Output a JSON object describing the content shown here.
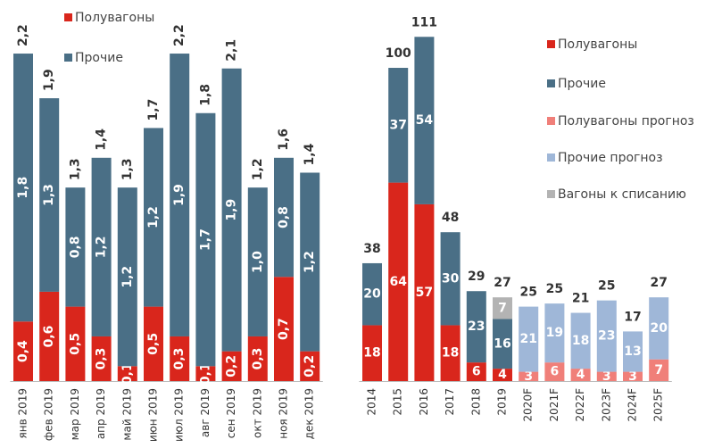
{
  "chart_data": [
    {
      "type": "bar",
      "stacked": true,
      "categories": [
        "янв 2019",
        "фев 2019",
        "мар 2019",
        "апр 2019",
        "май 2019",
        "июн 2019",
        "июл 2019",
        "авг 2019",
        "сен 2019",
        "окт 2019",
        "ноя 2019",
        "дек 2019"
      ],
      "series": [
        {
          "name": "Полувагоны",
          "color": "#d9261c",
          "values": [
            0.4,
            0.6,
            0.5,
            0.3,
            0.1,
            0.5,
            0.3,
            0.1,
            0.2,
            0.3,
            0.7,
            0.2
          ],
          "value_labels": [
            "0,4",
            "0,6",
            "0,5",
            "0,3",
            "0,1",
            "0,5",
            "0,3",
            "0,1",
            "0,2",
            "0,3",
            "0,7",
            "0,2"
          ]
        },
        {
          "name": "Прочие",
          "color": "#4a6f86",
          "values": [
            1.8,
            1.3,
            0.8,
            1.2,
            1.2,
            1.2,
            1.9,
            1.7,
            1.9,
            1.0,
            0.8,
            1.2
          ],
          "value_labels": [
            "1,8",
            "1,3",
            "0,8",
            "1,2",
            "1,2",
            "1,2",
            "1,9",
            "1,7",
            "1,9",
            "1,0",
            "0,8",
            "1,2"
          ]
        }
      ],
      "totals": {
        "values": [
          2.2,
          1.9,
          1.3,
          1.4,
          1.3,
          1.7,
          2.2,
          1.8,
          2.1,
          1.2,
          1.6,
          1.4
        ],
        "value_labels": [
          "2,2",
          "1,9",
          "1,3",
          "1,4",
          "1,3",
          "1,7",
          "2,2",
          "1,8",
          "2,1",
          "1,2",
          "1,6",
          "1,4"
        ]
      },
      "ylim": [
        0,
        2.5
      ]
    },
    {
      "type": "bar",
      "stacked": true,
      "categories": [
        "2014",
        "2015",
        "2016",
        "2017",
        "2018",
        "2019",
        "2020F",
        "2021F",
        "2022F",
        "2023F",
        "2024F",
        "2025F"
      ],
      "series": [
        {
          "name": "Полувагоны",
          "color": "#d9261c",
          "values": [
            18,
            64,
            57,
            18,
            6,
            4,
            null,
            null,
            null,
            null,
            null,
            null
          ]
        },
        {
          "name": "Прочие",
          "color": "#4a6f86",
          "values": [
            20,
            37,
            54,
            30,
            23,
            16,
            null,
            null,
            null,
            null,
            null,
            null
          ]
        },
        {
          "name": "Полувагоны прогноз",
          "color": "#f07f79",
          "values": [
            null,
            null,
            null,
            null,
            null,
            null,
            3,
            6,
            4,
            3,
            3,
            7
          ]
        },
        {
          "name": "Прочие прогноз",
          "color": "#9fb7d8",
          "values": [
            null,
            null,
            null,
            null,
            null,
            null,
            21,
            19,
            18,
            23,
            13,
            20
          ]
        },
        {
          "name": "Вагоны к списанию",
          "color": "#b3b3b3",
          "values": [
            null,
            null,
            null,
            null,
            null,
            7,
            null,
            null,
            null,
            null,
            null,
            null
          ]
        }
      ],
      "totals": {
        "values": [
          38,
          100,
          111,
          48,
          29,
          27,
          25,
          25,
          21,
          25,
          17,
          27
        ]
      },
      "ylim": [
        0,
        120
      ]
    }
  ]
}
